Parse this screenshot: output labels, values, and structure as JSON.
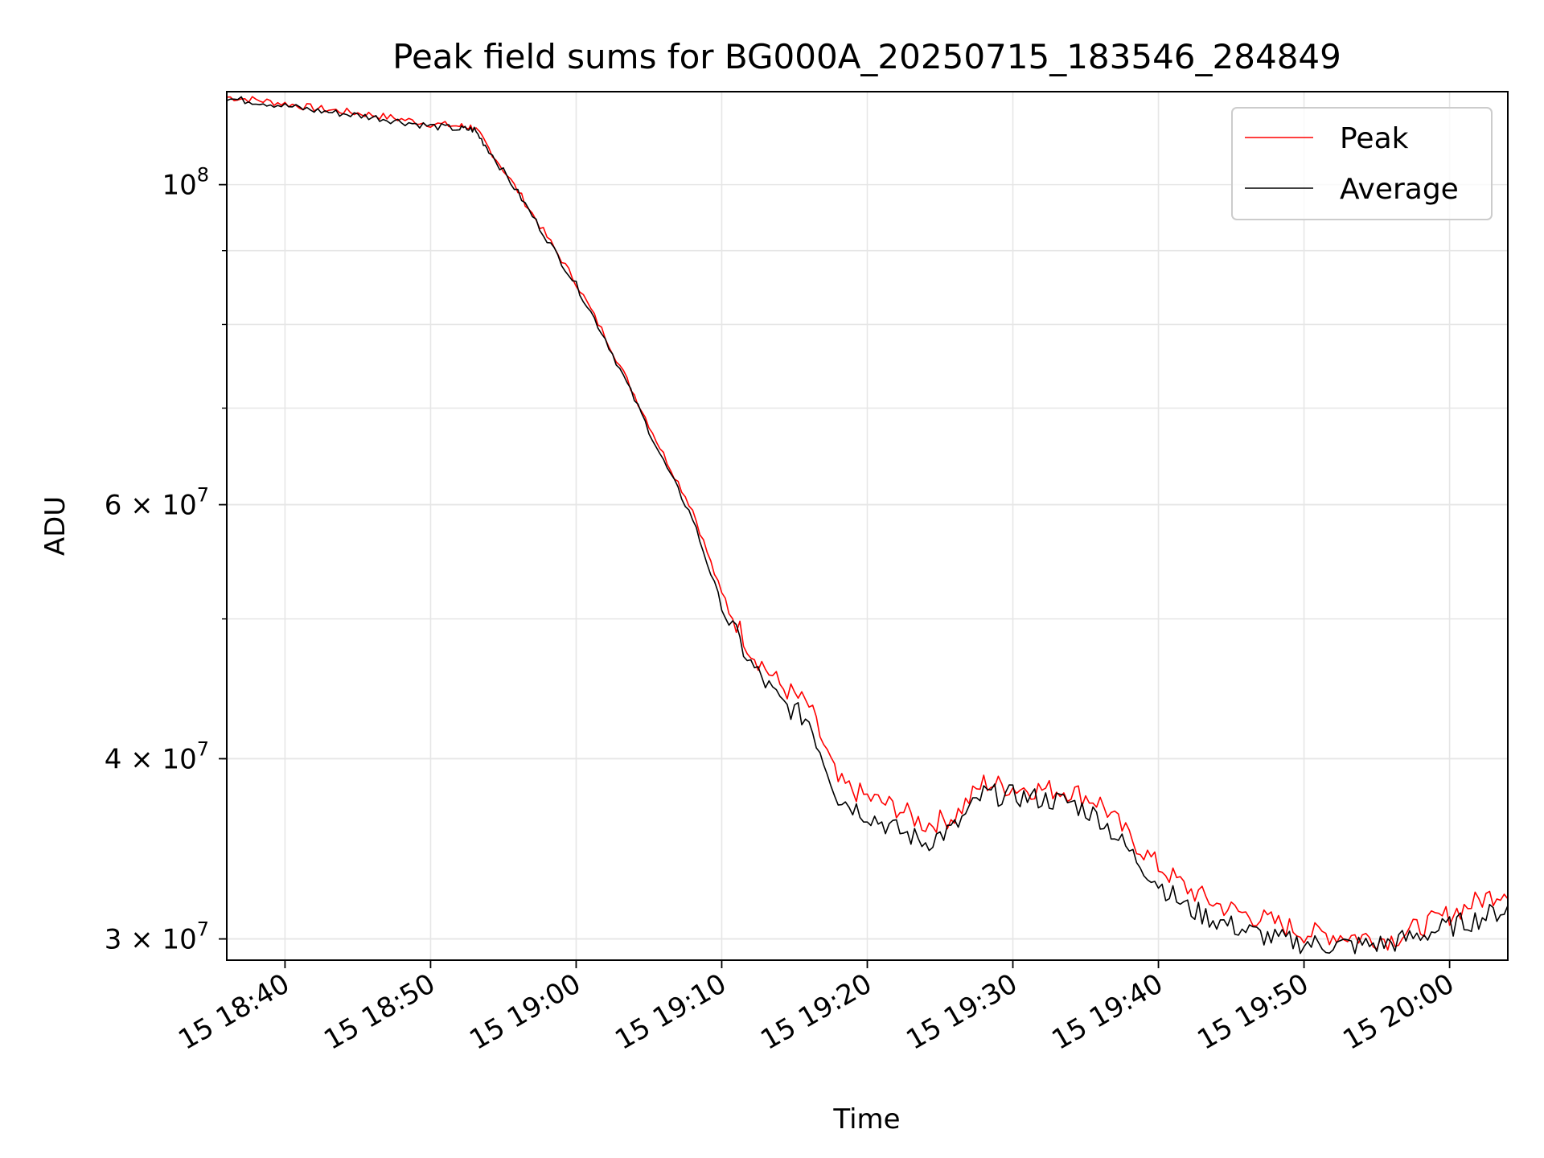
{
  "chart_data": {
    "type": "line",
    "title": "Peak field sums for BG000A_20250715_183546_284849",
    "xlabel": "Time",
    "ylabel": "ADU",
    "yscale": "log",
    "x_unit": "minutes",
    "xlim": [
      "15 18:36",
      "15 20:04"
    ],
    "ylim": [
      29000000,
      116000000
    ],
    "grid": true,
    "legend_position": "top-right",
    "x_ticks": [
      {
        "value": "15 18:40",
        "label": "15 18:40"
      },
      {
        "value": "15 18:50",
        "label": "15 18:50"
      },
      {
        "value": "15 19:00",
        "label": "15 19:00"
      },
      {
        "value": "15 19:10",
        "label": "15 19:10"
      },
      {
        "value": "15 19:20",
        "label": "15 19:20"
      },
      {
        "value": "15 19:30",
        "label": "15 19:30"
      },
      {
        "value": "15 19:40",
        "label": "15 19:40"
      },
      {
        "value": "15 19:50",
        "label": "15 19:50"
      },
      {
        "value": "15 20:00",
        "label": "15 20:00"
      }
    ],
    "y_ticks": [
      {
        "value": 100000000,
        "base": "10",
        "exp": "8"
      },
      {
        "value": 60000000,
        "base": "6 × 10",
        "exp": "7"
      },
      {
        "value": 40000000,
        "base": "4 × 10",
        "exp": "7"
      },
      {
        "value": 30000000,
        "base": "3 × 10",
        "exp": "7"
      }
    ],
    "y_minor_ticks": [
      30000000,
      40000000,
      50000000,
      60000000,
      70000000,
      80000000,
      90000000
    ],
    "x_minor_ticks": [],
    "x": [
      "15 18:36",
      "15 18:38",
      "15 18:40",
      "15 18:42",
      "15 18:44",
      "15 18:46",
      "15 18:48",
      "15 18:50",
      "15 18:52",
      "15 18:53",
      "15 18:54",
      "15 18:56",
      "15 18:58",
      "15 19:00",
      "15 19:02",
      "15 19:04",
      "15 19:06",
      "15 19:08",
      "15 19:10",
      "15 19:12",
      "15 19:14",
      "15 19:16",
      "15 19:18",
      "15 19:20",
      "15 19:22",
      "15 19:24",
      "15 19:26",
      "15 19:28",
      "15 19:30",
      "15 19:32",
      "15 19:34",
      "15 19:36",
      "15 19:38",
      "15 19:40",
      "15 19:42",
      "15 19:44",
      "15 19:46",
      "15 19:48",
      "15 19:50",
      "15 19:52",
      "15 19:54",
      "15 19:56",
      "15 19:58",
      "15 20:00",
      "15 20:02",
      "15 20:04"
    ],
    "series": [
      {
        "name": "Peak",
        "color": "#ff0000",
        "values": [
          115000000,
          114500000,
          113800000,
          113000000,
          112400000,
          111800000,
          111000000,
          110200000,
          109800000,
          109600000,
          106000000,
          99000000,
          92000000,
          85500000,
          78500000,
          71500000,
          65000000,
          59500000,
          52000000,
          47500000,
          45000000,
          43500000,
          38500000,
          37600000,
          37000000,
          36000000,
          36500000,
          38500000,
          38200000,
          38100000,
          38000000,
          37300000,
          35300000,
          33700000,
          32500000,
          31700000,
          31200000,
          30800000,
          30300000,
          30200000,
          30100000,
          30000000,
          30600000,
          31200000,
          31900000,
          32500000
        ]
      },
      {
        "name": "Average",
        "color": "#000000",
        "values": [
          114700000,
          114200000,
          113400000,
          112600000,
          112000000,
          111400000,
          110600000,
          109800000,
          109300000,
          109200000,
          105700000,
          98700000,
          91700000,
          85200000,
          78200000,
          71000000,
          64300000,
          58700000,
          51000000,
          46500000,
          43800000,
          42500000,
          37600000,
          36600000,
          35700000,
          35000000,
          35800000,
          37800000,
          37700000,
          37500000,
          37300000,
          36400000,
          34500000,
          32800000,
          31500000,
          30900000,
          30400000,
          30000000,
          29800000,
          29700000,
          29700000,
          29800000,
          30200000,
          30600000,
          31000000,
          31500000
        ]
      }
    ]
  }
}
